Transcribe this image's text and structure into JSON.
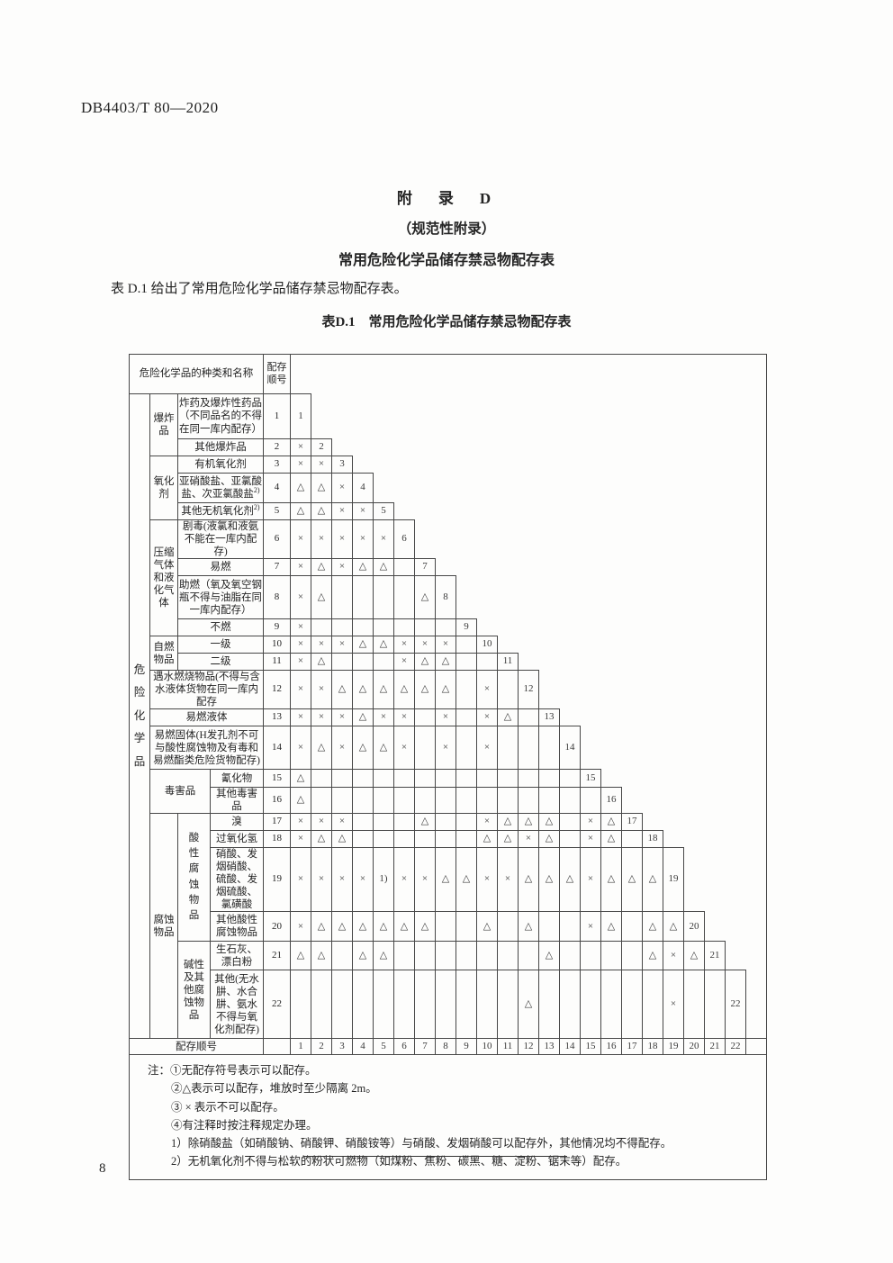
{
  "page": {
    "doc_code": "DB4403/T 80—2020",
    "page_number": "8"
  },
  "appendix": {
    "heading_appendix": "附　录　D",
    "heading_type": "（规范性附录）",
    "heading_title": "常用危险化学品储存禁忌物配存表",
    "intro": "表 D.1 给出了常用危险化学品储存禁忌物配存表。",
    "table_caption": "表D.1　常用危险化学品储存禁忌物配存表"
  },
  "table": {
    "corner_header": "危险化学品的种类和名称",
    "seq_header": "配存顺号",
    "left_label": "危险化学品",
    "footer_label": "配存顺号",
    "footer_numbers": [
      "1",
      "2",
      "3",
      "4",
      "5",
      "6",
      "7",
      "8",
      "9",
      "10",
      "11",
      "12",
      "13",
      "14",
      "15",
      "16",
      "17",
      "18",
      "19",
      "20",
      "21",
      "22"
    ],
    "symbols": {
      "separate_2m": "△",
      "forbidden": "×",
      "note_ref": "1)"
    },
    "rows": [
      {
        "num": "1",
        "name": "炸药及爆炸性药品（不同品名的不得在同一库内配存）",
        "name_colspan": 2,
        "lead": [
          {
            "text": "爆炸品",
            "rowspan": 2
          }
        ],
        "cells": []
      },
      {
        "num": "2",
        "name": "其他爆炸品",
        "name_colspan": 2,
        "lead": [],
        "cells": [
          "×"
        ]
      },
      {
        "num": "3",
        "name": "有机氧化剂",
        "name_colspan": 2,
        "lead": [
          {
            "text": "氧化剂",
            "rowspan": 3
          }
        ],
        "cells": [
          "×",
          "×"
        ]
      },
      {
        "num": "4",
        "name": "亚硝酸盐、亚氯酸盐、次亚氯酸盐",
        "sup": "2)",
        "name_colspan": 2,
        "lead": [],
        "cells": [
          "△",
          "△",
          "×"
        ]
      },
      {
        "num": "5",
        "name": "其他无机氧化剂",
        "sup": "2)",
        "name_colspan": 2,
        "lead": [],
        "cells": [
          "△",
          "△",
          "×",
          "×"
        ]
      },
      {
        "num": "6",
        "name": "剧毒(液氯和液氨不能在一库内配存)",
        "name_colspan": 2,
        "lead": [
          {
            "text": "压缩气体和液化气体",
            "rowspan": 4
          }
        ],
        "cells": [
          "×",
          "×",
          "×",
          "×",
          "×"
        ]
      },
      {
        "num": "7",
        "name": "易燃",
        "name_colspan": 2,
        "lead": [],
        "cells": [
          "×",
          "△",
          "×",
          "△",
          "△",
          ""
        ]
      },
      {
        "num": "8",
        "name": "助燃（氧及氧空钢瓶不得与油脂在同一库内配存）",
        "name_colspan": 2,
        "lead": [],
        "cells": [
          "×",
          "△",
          "",
          "",
          "",
          "",
          "△"
        ]
      },
      {
        "num": "9",
        "name": "不燃",
        "name_colspan": 2,
        "lead": [],
        "cells": [
          "×",
          "",
          "",
          "",
          "",
          "",
          "",
          ""
        ]
      },
      {
        "num": "10",
        "name": "一级",
        "name_colspan": 2,
        "lead": [
          {
            "text": "自燃物品",
            "rowspan": 2
          }
        ],
        "cells": [
          "×",
          "×",
          "×",
          "△",
          "△",
          "×",
          "×",
          "×",
          ""
        ]
      },
      {
        "num": "11",
        "name": "二级",
        "name_colspan": 2,
        "lead": [],
        "cells": [
          "×",
          "△",
          "",
          "",
          "",
          "×",
          "△",
          "△",
          "",
          ""
        ]
      },
      {
        "num": "12",
        "name": "遇水燃烧物品(不得与含水液体货物在同一库内配存",
        "name_colspan": 3,
        "lead": [],
        "cells": [
          "×",
          "×",
          "△",
          "△",
          "△",
          "△",
          "△",
          "△",
          "",
          "×",
          ""
        ]
      },
      {
        "num": "13",
        "name": "易燃液体",
        "name_colspan": 3,
        "lead": [],
        "cells": [
          "×",
          "×",
          "×",
          "△",
          "×",
          "×",
          "",
          "×",
          "",
          "×",
          "△",
          ""
        ]
      },
      {
        "num": "14",
        "name": "易燃固体(H发孔剂不可与酸性腐蚀物及有毒和易燃酯类危险货物配存)",
        "name_colspan": 3,
        "lead": [],
        "cells": [
          "×",
          "△",
          "×",
          "△",
          "△",
          "×",
          "",
          "×",
          "",
          "×",
          "",
          "",
          ""
        ]
      },
      {
        "num": "15",
        "name": "氰化物",
        "name_colspan": 1,
        "lead": [
          {
            "text": "毒害品",
            "rowspan": 2,
            "colspan": 2
          }
        ],
        "cells": [
          "△",
          "",
          "",
          "",
          "",
          "",
          "",
          "",
          "",
          "",
          "",
          "",
          "",
          ""
        ]
      },
      {
        "num": "16",
        "name": "其他毒害品",
        "name_colspan": 1,
        "lead": [],
        "cells": [
          "△",
          "",
          "",
          "",
          "",
          "",
          "",
          "",
          "",
          "",
          "",
          "",
          "",
          "",
          ""
        ]
      },
      {
        "num": "17",
        "name": "溴",
        "name_colspan": 1,
        "lead": [
          {
            "text": "腐蚀物品",
            "rowspan": 6
          },
          {
            "text": "酸性腐蚀物品",
            "rowspan": 4,
            "vertical": true
          }
        ],
        "cells": [
          "×",
          "×",
          "×",
          "",
          "",
          "",
          "△",
          "",
          "",
          "×",
          "△",
          "△",
          "△",
          "",
          "×",
          "△"
        ]
      },
      {
        "num": "18",
        "name": "过氧化氢",
        "name_colspan": 1,
        "lead": [],
        "cells": [
          "×",
          "△",
          "△",
          "",
          "",
          "",
          "",
          "",
          "",
          "△",
          "△",
          "×",
          "△",
          "",
          "×",
          "△",
          ""
        ]
      },
      {
        "num": "19",
        "name": "硝酸、发烟硝酸、硫酸、发烟硫酸、氯磺酸",
        "name_colspan": 1,
        "lead": [],
        "cells": [
          "×",
          "×",
          "×",
          "×",
          "1)",
          "×",
          "×",
          "△",
          "△",
          "×",
          "×",
          "△",
          "△",
          "△",
          "×",
          "△",
          "△",
          "△"
        ]
      },
      {
        "num": "20",
        "name": "其他酸性腐蚀物品",
        "name_colspan": 1,
        "lead": [],
        "cells": [
          "×",
          "△",
          "△",
          "△",
          "△",
          "△",
          "△",
          "",
          "",
          "△",
          "",
          "△",
          "",
          "",
          "×",
          "△",
          "",
          "△",
          "△"
        ]
      },
      {
        "num": "21",
        "name": "生石灰、漂白粉",
        "name_colspan": 1,
        "lead": [
          {
            "text": "碱性及其他腐蚀物品",
            "rowspan": 2
          }
        ],
        "cells": [
          "△",
          "△",
          "",
          "△",
          "△",
          "",
          "",
          "",
          "",
          "",
          "",
          "",
          "△",
          "",
          "",
          "",
          "",
          "△",
          "×",
          "△"
        ]
      },
      {
        "num": "22",
        "name": "其他(无水肼、水合肼、氨水不得与氧化剂配存)",
        "name_colspan": 1,
        "lead": [],
        "cells": [
          "",
          "",
          "",
          "",
          "",
          "",
          "",
          "",
          "",
          "",
          "",
          "△",
          "",
          "",
          "",
          "",
          "",
          "",
          "×",
          "",
          ""
        ]
      }
    ]
  },
  "notes": {
    "lines": [
      "注：①无配存符号表示可以配存。",
      "②△表示可以配存，堆放时至少隔离 2m。",
      "③ × 表示不可以配存。",
      "④有注释时按注释规定办理。",
      "1）除硝酸盐（如硝酸钠、硝酸钾、硝酸铵等）与硝酸、发烟硝酸可以配存外，其他情况均不得配存。",
      "2）无机氧化剂不得与松软的粉状可燃物（如煤粉、焦粉、碳黑、糖、淀粉、锯末等）配存。"
    ]
  }
}
